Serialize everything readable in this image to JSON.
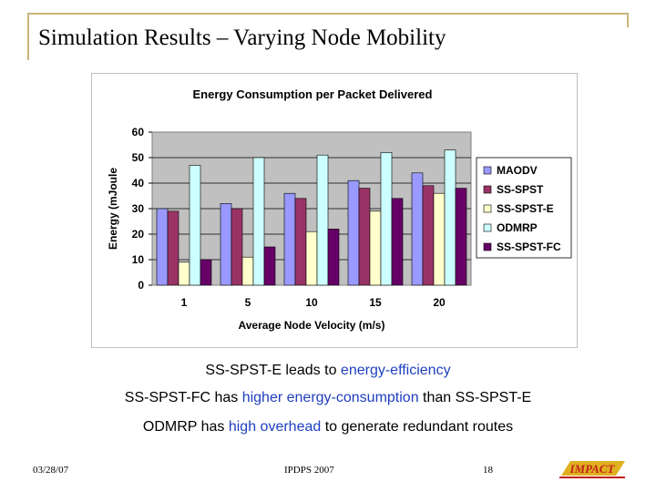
{
  "slide": {
    "title": "Simulation Results – Varying Node Mobility"
  },
  "notes": {
    "line1": {
      "a": "SS-SPST-E leads to ",
      "b": "energy-efficiency",
      "c": ""
    },
    "line2": {
      "a": "SS-SPST-FC has ",
      "b": "higher energy-consumption",
      "c": " than SS-SPST-E"
    },
    "line3": {
      "a": "ODMRP has ",
      "b": "high overhead",
      "c": " to generate redundant routes"
    }
  },
  "footer": {
    "date": "03/28/07",
    "venue": "IPDPS 2007",
    "page": "18",
    "logo_text": "IMPACT"
  },
  "colors": {
    "frame": "#c8b57a",
    "highlight_text": "#1f3fbf",
    "plot_area": "#c0c0c0",
    "logo_red": "#c0201a",
    "logo_gold": "#e0b020"
  },
  "chart_data": {
    "type": "bar",
    "title": "Energy Consumption per Packet Delivered",
    "xlabel": "Average Node Velocity (m/s)",
    "ylabel": "Energy (mJoule",
    "categories": [
      "1",
      "5",
      "10",
      "15",
      "20"
    ],
    "ylim": [
      0,
      60
    ],
    "yticks": [
      "0",
      "10",
      "20",
      "30",
      "40",
      "50",
      "60"
    ],
    "grid": true,
    "legend_position": "right",
    "series": [
      {
        "name": "MAODV",
        "color": "#9999ff",
        "values": [
          30,
          32,
          36,
          41,
          44
        ]
      },
      {
        "name": "SS-SPST",
        "color": "#993366",
        "values": [
          29,
          30,
          34,
          38,
          39
        ]
      },
      {
        "name": "SS-SPST-E",
        "color": "#ffffcc",
        "values": [
          9,
          11,
          21,
          29,
          36
        ]
      },
      {
        "name": "ODMRP",
        "color": "#ccffff",
        "values": [
          47,
          50,
          51,
          52,
          53
        ]
      },
      {
        "name": "SS-SPST-FC",
        "color": "#660066",
        "values": [
          10,
          15,
          22,
          34,
          38
        ]
      }
    ]
  }
}
